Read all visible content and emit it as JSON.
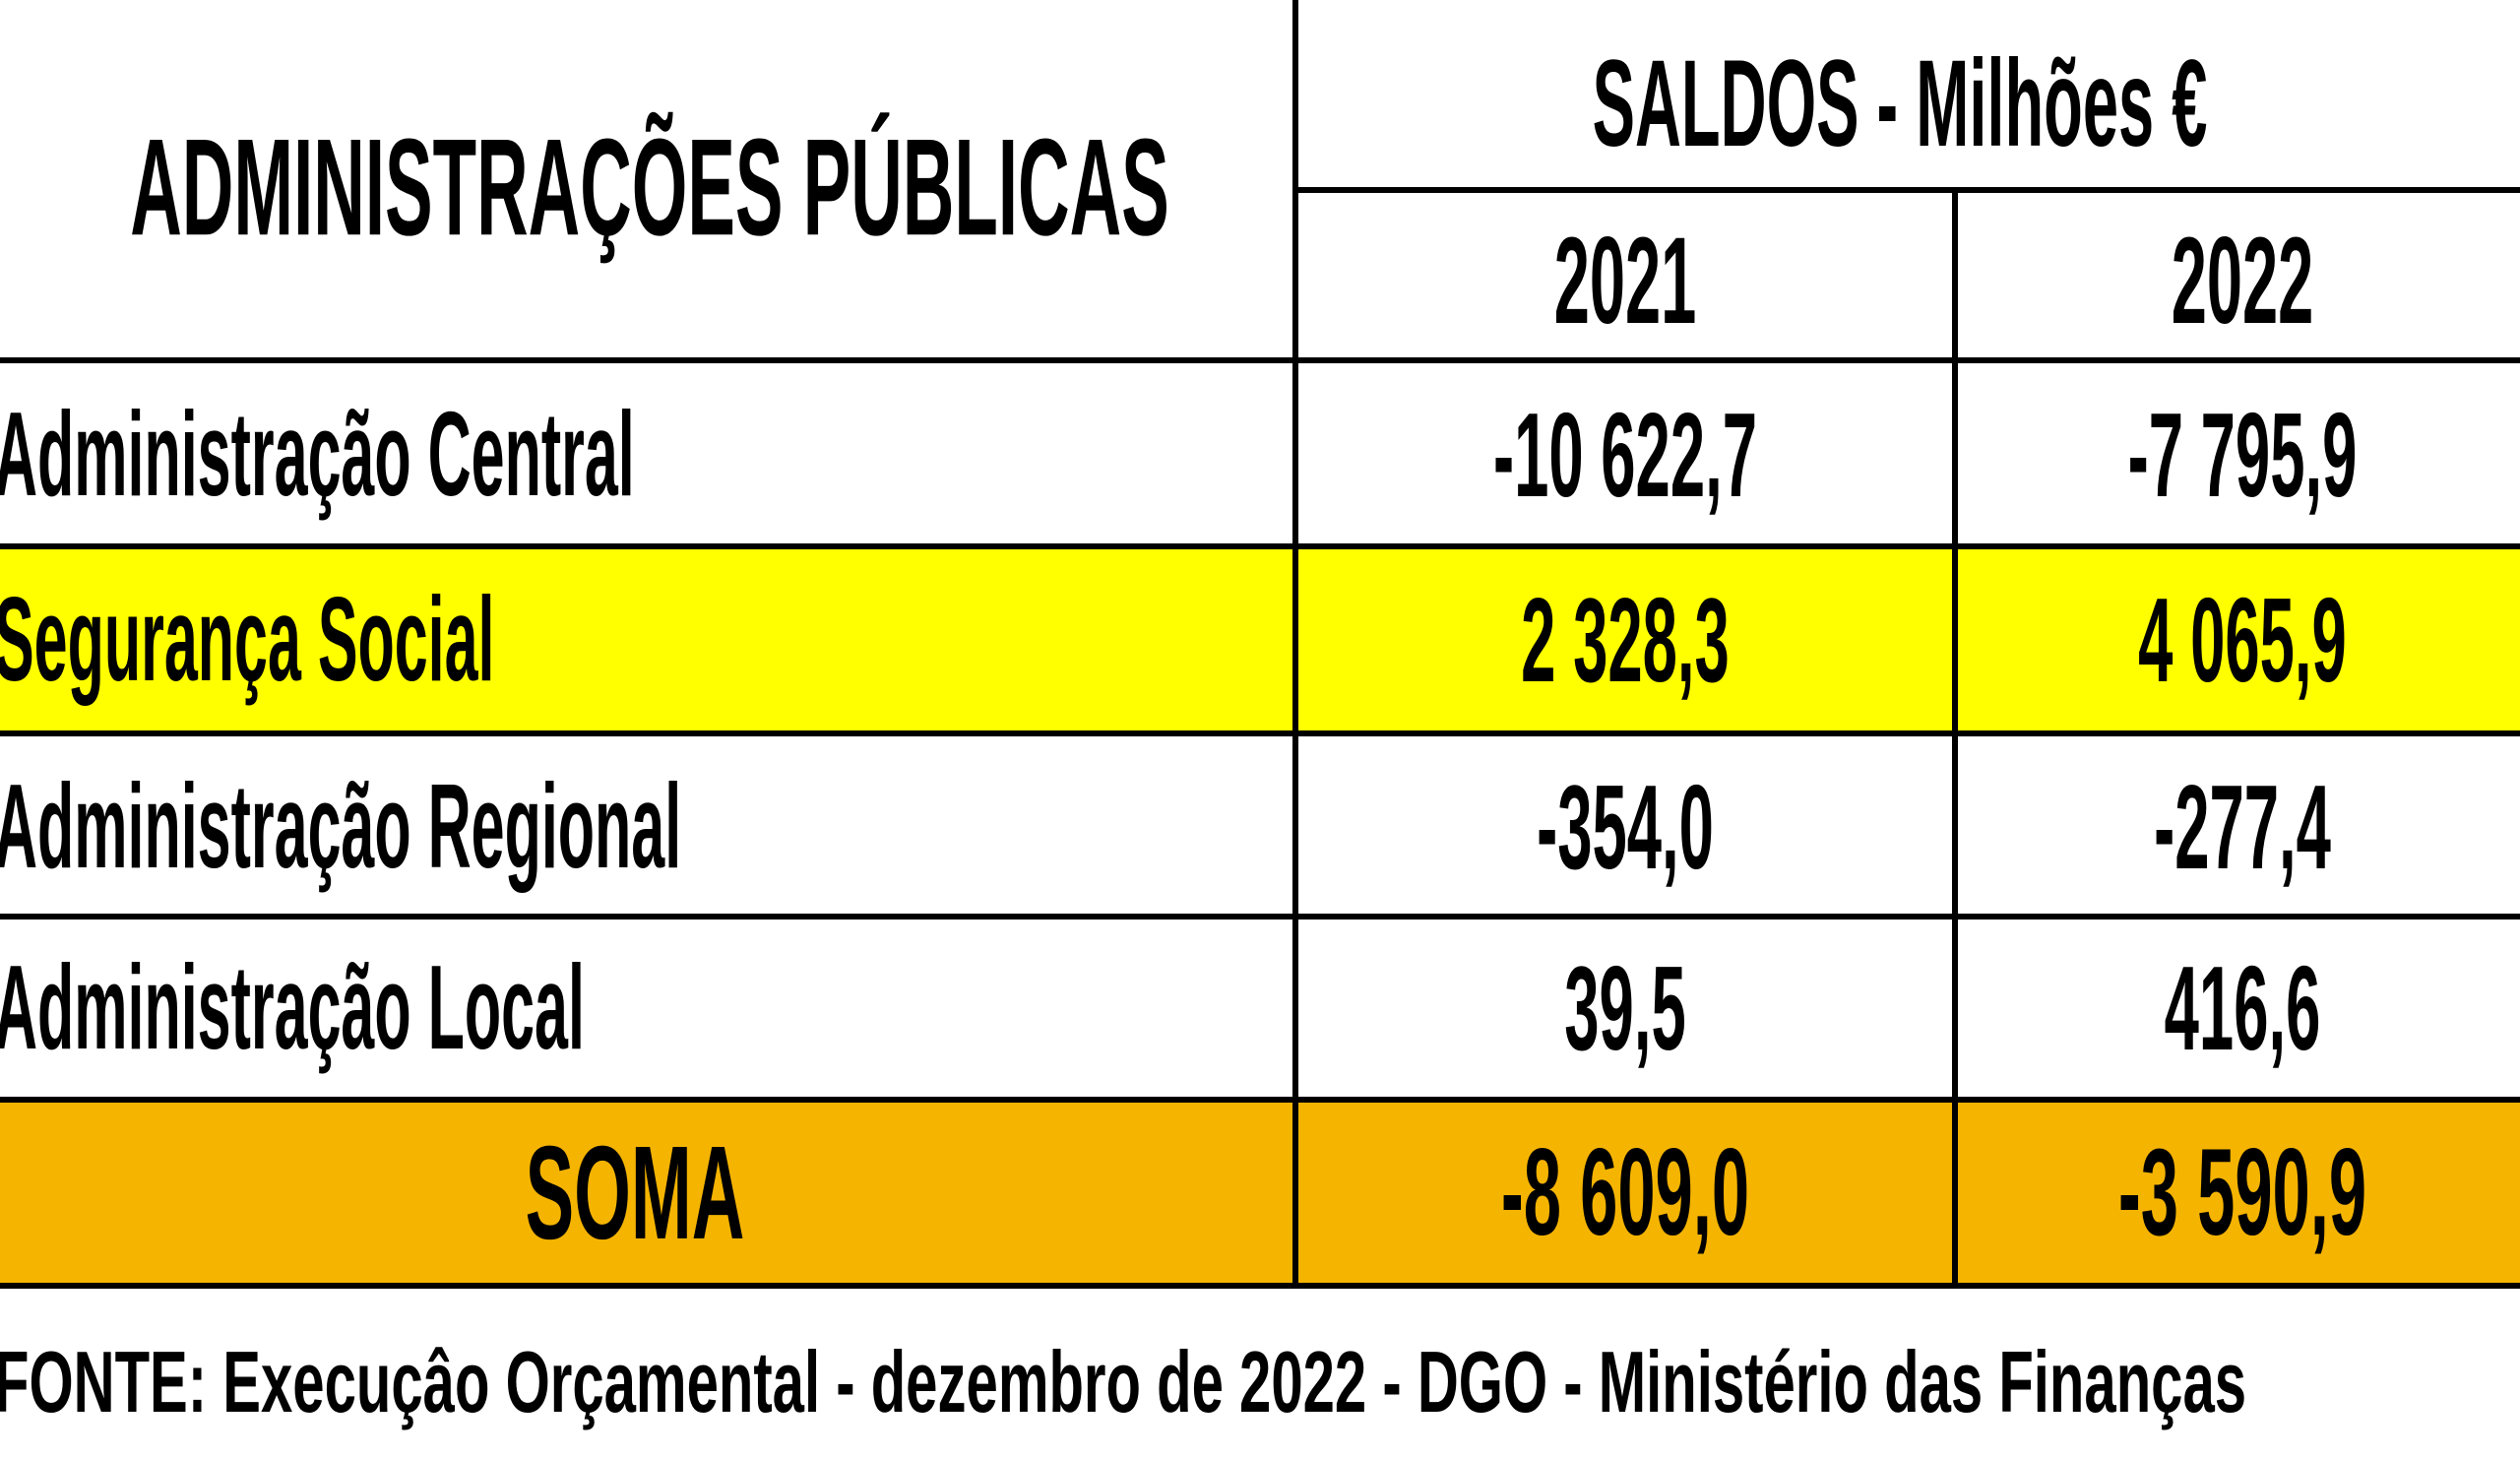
{
  "header": {
    "title": "ADMINISTRAÇÕES PÚBLICAS",
    "group": "SALDOS - Milhões €",
    "years": [
      "2021",
      "2022"
    ]
  },
  "table": {
    "rows": [
      [
        "Administração Central",
        "-10 622,7",
        "-7 795,9"
      ],
      [
        "Segurança Social",
        "2 328,3",
        "4 065,9"
      ],
      [
        "Administração Regional",
        "-354,0",
        "-277,4"
      ],
      [
        "Administração Local",
        "39,5",
        "416,6"
      ]
    ]
  },
  "total": [
    "SOMA",
    "-8 609,0",
    "-3 590,9"
  ],
  "source": "FONTE: Execuçâo Orçamental - dezembro de 2022 - DGO - Ministério das Finanças"
}
